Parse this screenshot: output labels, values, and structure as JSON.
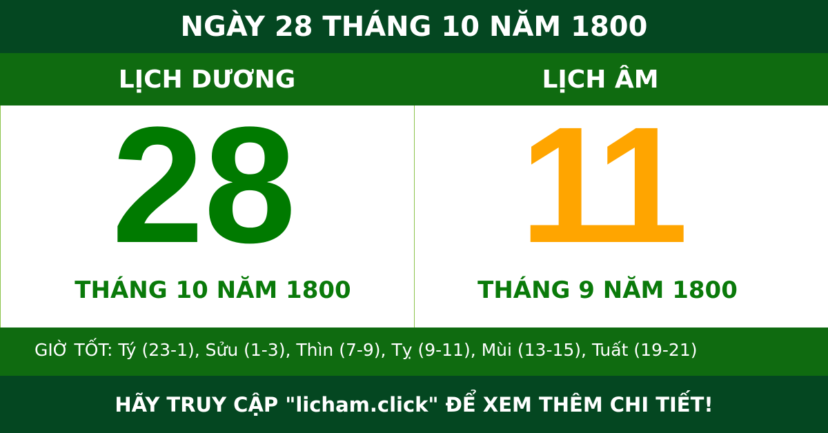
{
  "title": "NGÀY 28 THÁNG 10 NĂM 1800",
  "solar": {
    "heading": "LỊCH DƯƠNG",
    "day": "28",
    "month_year": "THÁNG 10 NĂM 1800"
  },
  "lunar": {
    "heading": "LỊCH ÂM",
    "day": "11",
    "month_year": "THÁNG 9 NĂM 1800"
  },
  "good_hours": "GIỜ TỐT: Tý (23-1), Sửu (1-3), Thìn (7-9), Tỵ (9-11), Mùi (13-15), Tuất (19-21)",
  "footer": "HÃY TRUY CẬP \"licham.click\" ĐỂ XEM THÊM CHI TIẾT!",
  "colors": {
    "dark_green": "#044721",
    "green": "#0f6b10",
    "solar_day": "#007a00",
    "lunar_day": "#ffa500"
  }
}
